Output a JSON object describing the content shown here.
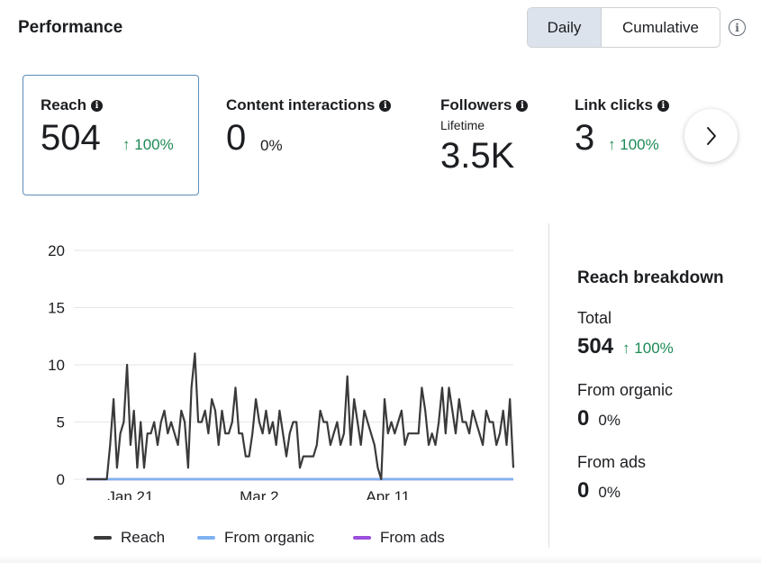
{
  "header": {
    "title": "Performance",
    "toggle": {
      "daily": "Daily",
      "cumulative": "Cumulative",
      "selected": "Daily"
    },
    "info_icon": "info-circle-icon"
  },
  "metrics": [
    {
      "label": "Reach",
      "value": "504",
      "delta": "100%",
      "trend": "up",
      "selected": true
    },
    {
      "label": "Content interactions",
      "value": "0",
      "delta": "0%",
      "trend": "none"
    },
    {
      "label": "Followers",
      "sublabel": "Lifetime",
      "value": "3.5K"
    },
    {
      "label": "Link clicks",
      "value": "3",
      "delta": "100%",
      "trend": "up"
    }
  ],
  "info_glyph": "i",
  "up_arrow": "↑",
  "next_icon": "chevron-right-icon",
  "colors": {
    "accent_up": "#1d8a55",
    "reach": "#3a3a3a",
    "organic": "#7fb2f0",
    "ads": "#9a4fdc",
    "selected_border": "#5b8db8"
  },
  "breakdown": {
    "title": "Reach breakdown",
    "total_label": "Total",
    "total_value": "504",
    "total_delta": "100%",
    "organic_label": "From organic",
    "organic_value": "0",
    "organic_delta": "0%",
    "ads_label": "From ads",
    "ads_value": "0",
    "ads_delta": "0%"
  },
  "chart_data": {
    "type": "line",
    "y_ticks": [
      0,
      5,
      10,
      15,
      20
    ],
    "ylim": [
      0,
      20
    ],
    "x_ticks": [
      "Jan 21",
      "Mar 2",
      "Apr 11"
    ],
    "legend": [
      "Reach",
      "From organic",
      "From ads"
    ],
    "series": [
      {
        "name": "Reach",
        "color": "#3a3a3a",
        "values": [
          0,
          0,
          0,
          0,
          0,
          0,
          0,
          3,
          7,
          1,
          4,
          5,
          10,
          3,
          6,
          1,
          5,
          1,
          4,
          4,
          5,
          3,
          5,
          6,
          4,
          5,
          4,
          3,
          6,
          5,
          1,
          8,
          11,
          5,
          5,
          6,
          4,
          7,
          6,
          3,
          6,
          4,
          4,
          5,
          8,
          4,
          4,
          2,
          2,
          4,
          7,
          5,
          4,
          6,
          4,
          5,
          3,
          6,
          4,
          2,
          4,
          5,
          5,
          1,
          2,
          2,
          2,
          2,
          3,
          6,
          5,
          5,
          3,
          4,
          5,
          3,
          4,
          9,
          3,
          7,
          5,
          3,
          6,
          5,
          4,
          3,
          1,
          0,
          7,
          4,
          5,
          4,
          5,
          6,
          3,
          4,
          4,
          4,
          4,
          8,
          6,
          3,
          4,
          3,
          5,
          8,
          4,
          8,
          6,
          4,
          7,
          5,
          5,
          4,
          6,
          5,
          4,
          3,
          6,
          5,
          5,
          3,
          4,
          6,
          3,
          7,
          1
        ]
      },
      {
        "name": "From organic",
        "color": "#7fb2f0",
        "values_note": "",
        "constant": 0
      },
      {
        "name": "From ads",
        "color": "#9a4fdc",
        "constant": 0
      }
    ],
    "grid": true,
    "legend_position": "bottom"
  }
}
